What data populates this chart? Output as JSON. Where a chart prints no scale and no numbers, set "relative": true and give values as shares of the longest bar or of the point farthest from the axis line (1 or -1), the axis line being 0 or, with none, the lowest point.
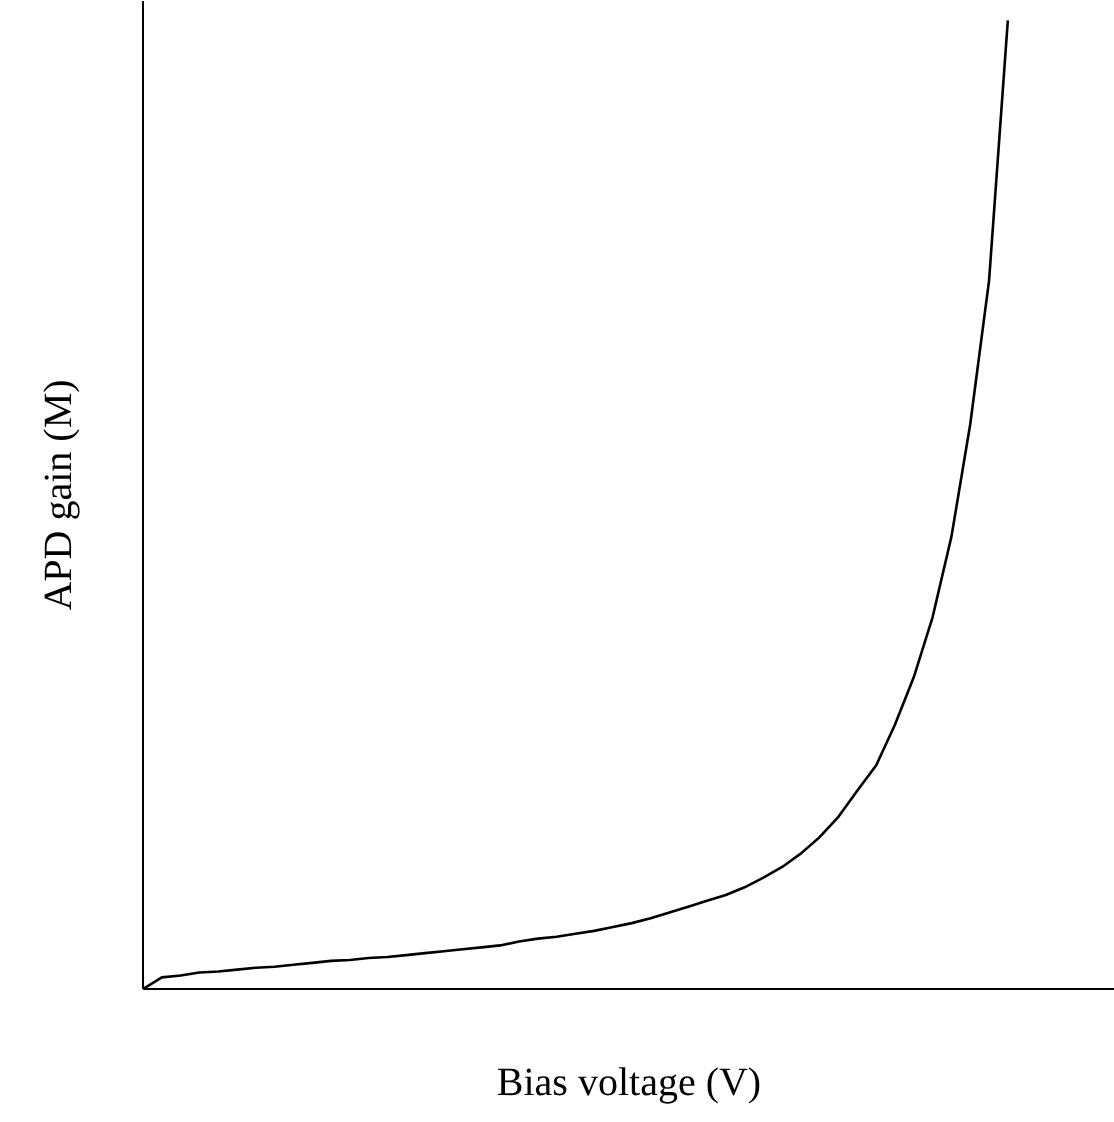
{
  "chart_data": {
    "type": "line",
    "relative": true,
    "xlabel": "Bias voltage (V)",
    "ylabel": "APD gain (M)",
    "categories": [
      null,
      null,
      null,
      null,
      null,
      null,
      null,
      null,
      null,
      null,
      null,
      null,
      null,
      null,
      null,
      null,
      null,
      null,
      null,
      null,
      null,
      null,
      null,
      null,
      null,
      null,
      null,
      null,
      null,
      null,
      null,
      null,
      null,
      null,
      null,
      null,
      null,
      null,
      null,
      null,
      null,
      null,
      null,
      null,
      null,
      null,
      null,
      null,
      null,
      null
    ],
    "series": [
      {
        "color": "#000000",
        "values": [
          0,
          0.012,
          0.014,
          0.017,
          0.018,
          0.02,
          0.022,
          0.023,
          0.025,
          0.027,
          0.029,
          0.03,
          0.032,
          0.033,
          0.035,
          0.037,
          0.039,
          0.041,
          0.043,
          0.045,
          0.049,
          0.052,
          0.054,
          0.057,
          0.06,
          0.064,
          0.068,
          0.073,
          0.079,
          0.085,
          0.091,
          0.097,
          0.105,
          0.115,
          0.126,
          0.14,
          0.157,
          0.178,
          0.205,
          0.231,
          0.273,
          0.322,
          0.384,
          0.467,
          0.583,
          0.731,
          1,
          null,
          null,
          null
        ]
      }
    ],
    "grid": false,
    "marker": "none",
    "line_style": "solid"
  }
}
